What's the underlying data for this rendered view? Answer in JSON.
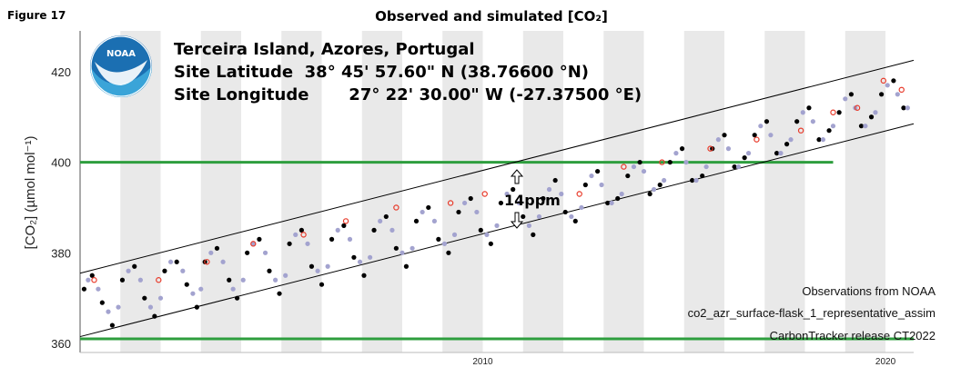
{
  "figure_label": "Figure 17",
  "chart_data": {
    "type": "scatter",
    "title": "Observed and simulated [CO₂]",
    "ylabel": "[CO₂] (µmol mol⁻¹)",
    "xlabel": "",
    "xlim": [
      2000.0,
      2020.7
    ],
    "ylim": [
      358.0,
      429.0
    ],
    "yticks": [
      360,
      380,
      400,
      420
    ],
    "xticks": [
      2010,
      2020
    ],
    "grid": false,
    "year_shading": "alternating grey bands by year",
    "logo": {
      "text": "NOAA",
      "icon": "noaa-logo"
    },
    "site_info": [
      "Terceira Island, Azores, Portugal",
      "Site Latitude  38° 45' 57.60\" N (38.76600 °N)",
      "Site Longitude       27° 22' 30.00\" W (-27.37500 °E)"
    ],
    "annotations": {
      "gap_label": "14ppm",
      "notes": [
        "Observations from NOAA",
        "co2_azr_surface-flask_1_representative_assim",
        "CarbonTracker release CT2022"
      ]
    },
    "reference_lines": [
      {
        "value": 400,
        "color": "#2e9e3e"
      },
      {
        "value": 361,
        "color": "#2e9e3e"
      }
    ],
    "envelope": {
      "upper": {
        "x": [
          2000.0,
          2020.7
        ],
        "y": [
          375.5,
          422.5
        ]
      },
      "lower": {
        "x": [
          2000.0,
          2020.7
        ],
        "y": [
          361.5,
          408.5
        ]
      },
      "color": "#000000"
    },
    "series": [
      {
        "name": "observed",
        "color": "#000000",
        "x": [
          2000.1,
          2000.3,
          2000.55,
          2000.8,
          2001.05,
          2001.35,
          2001.6,
          2001.85,
          2002.1,
          2002.4,
          2002.65,
          2002.9,
          2003.1,
          2003.4,
          2003.7,
          2003.9,
          2004.15,
          2004.45,
          2004.7,
          2004.95,
          2005.2,
          2005.5,
          2005.75,
          2006.0,
          2006.25,
          2006.55,
          2006.8,
          2007.05,
          2007.3,
          2007.6,
          2007.85,
          2008.1,
          2008.35,
          2008.65,
          2008.9,
          2009.15,
          2009.4,
          2009.7,
          2009.95,
          2010.2,
          2010.45,
          2010.75,
          2011.0,
          2011.25,
          2011.5,
          2011.8,
          2012.05,
          2012.3,
          2012.55,
          2012.85,
          2013.1,
          2013.35,
          2013.6,
          2013.9,
          2014.15,
          2014.4,
          2014.65,
          2014.95,
          2015.2,
          2015.45,
          2015.7,
          2016.0,
          2016.25,
          2016.5,
          2016.75,
          2017.05,
          2017.3,
          2017.55,
          2017.8,
          2018.1,
          2018.35,
          2018.6,
          2018.85,
          2019.15,
          2019.4,
          2019.65,
          2019.9,
          2020.2,
          2020.45
        ],
        "y": [
          372,
          375,
          369,
          364,
          374,
          377,
          370,
          366,
          376,
          378,
          373,
          368,
          378,
          381,
          374,
          370,
          380,
          383,
          376,
          371,
          382,
          385,
          377,
          373,
          383,
          386,
          379,
          375,
          385,
          388,
          381,
          377,
          387,
          390,
          383,
          380,
          389,
          392,
          385,
          382,
          391,
          394,
          388,
          384,
          392,
          396,
          389,
          387,
          395,
          398,
          391,
          392,
          397,
          400,
          393,
          395,
          400,
          403,
          396,
          397,
          403,
          406,
          399,
          401,
          406,
          409,
          402,
          404,
          409,
          412,
          405,
          407,
          411,
          415,
          408,
          410,
          415,
          418,
          412
        ]
      },
      {
        "name": "simulated",
        "color": "#a3a3cf",
        "x": [
          2000.2,
          2000.45,
          2000.7,
          2000.95,
          2001.2,
          2001.5,
          2001.75,
          2002.0,
          2002.25,
          2002.55,
          2002.8,
          2003.0,
          2003.25,
          2003.55,
          2003.8,
          2004.05,
          2004.3,
          2004.6,
          2004.85,
          2005.1,
          2005.35,
          2005.65,
          2005.9,
          2006.15,
          2006.4,
          2006.7,
          2006.95,
          2007.2,
          2007.45,
          2007.75,
          2008.0,
          2008.25,
          2008.5,
          2008.8,
          2009.05,
          2009.3,
          2009.55,
          2009.85,
          2010.1,
          2010.35,
          2010.6,
          2010.9,
          2011.15,
          2011.4,
          2011.65,
          2011.95,
          2012.2,
          2012.45,
          2012.7,
          2012.95,
          2013.2,
          2013.45,
          2013.75,
          2014.0,
          2014.25,
          2014.5,
          2014.8,
          2015.05,
          2015.3,
          2015.55,
          2015.85,
          2016.1,
          2016.35,
          2016.6,
          2016.9,
          2017.15,
          2017.4,
          2017.65,
          2017.95,
          2018.2,
          2018.45,
          2018.7,
          2019.0,
          2019.25,
          2019.5,
          2019.75,
          2020.05,
          2020.3,
          2020.55
        ],
        "y": [
          374,
          372,
          367,
          368,
          376,
          374,
          368,
          370,
          378,
          376,
          371,
          372,
          380,
          378,
          372,
          374,
          382,
          380,
          374,
          375,
          384,
          382,
          376,
          377,
          385,
          383,
          378,
          379,
          387,
          385,
          380,
          381,
          389,
          387,
          382,
          384,
          391,
          389,
          384,
          386,
          393,
          391,
          386,
          388,
          394,
          393,
          388,
          390,
          397,
          395,
          391,
          393,
          399,
          398,
          394,
          396,
          402,
          400,
          396,
          399,
          405,
          403,
          399,
          402,
          408,
          406,
          402,
          405,
          411,
          409,
          405,
          408,
          414,
          412,
          408,
          411,
          417,
          415,
          412
        ]
      },
      {
        "name": "flagged",
        "color": "#e83a2a",
        "x": [
          2000.35,
          2001.95,
          2003.15,
          2004.3,
          2005.55,
          2006.6,
          2007.85,
          2009.2,
          2010.05,
          2012.4,
          2013.5,
          2014.45,
          2015.65,
          2016.8,
          2017.9,
          2018.7,
          2019.3,
          2019.95,
          2020.4
        ],
        "y": [
          374,
          374,
          378,
          382,
          384,
          387,
          390,
          391,
          393,
          393,
          399,
          400,
          403,
          405,
          407,
          411,
          412,
          418,
          416
        ]
      }
    ]
  }
}
